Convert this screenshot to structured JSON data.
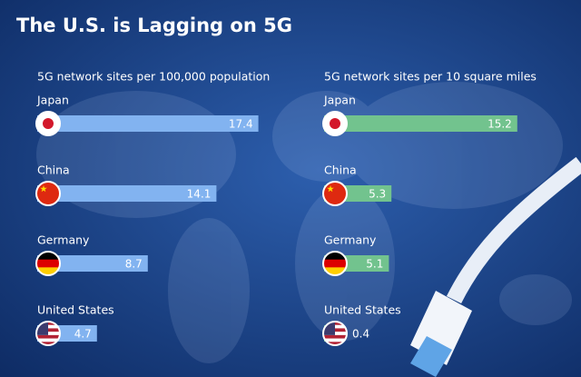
{
  "title": "The U.S. is Lagging on 5G",
  "chart_data": [
    {
      "type": "bar",
      "title": "5G network sites per 100,000 population",
      "categories": [
        "Japan",
        "China",
        "Germany",
        "United States"
      ],
      "values": [
        17.4,
        14.1,
        8.7,
        4.7
      ],
      "color": "#82b3f0"
    },
    {
      "type": "bar",
      "title": "5G network sites per 10 square miles",
      "categories": [
        "Japan",
        "China",
        "Germany",
        "United States"
      ],
      "values": [
        15.2,
        5.3,
        5.1,
        0.4
      ],
      "color": "#72c38e"
    }
  ]
}
